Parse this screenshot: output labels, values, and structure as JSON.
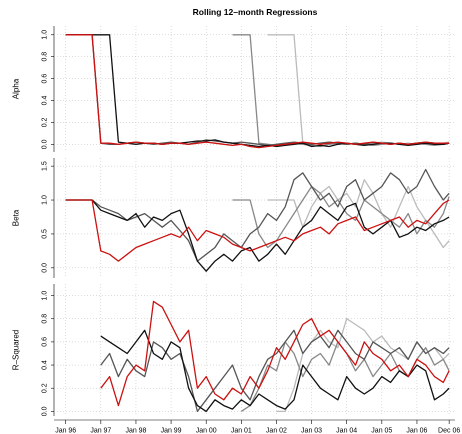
{
  "chart_data": [
    {
      "type": "line",
      "title": "Rolling 12–month Regressions",
      "ylabel": "Alpha",
      "xlim": [
        "1995-09",
        "2007-02"
      ],
      "ylim": [
        -0.07,
        1.08
      ],
      "yticks": [
        {
          "value": 0,
          "label": "0.0"
        },
        {
          "value": 0.2,
          "label": "0.2"
        },
        {
          "value": 0.4,
          "label": "0.4"
        },
        {
          "value": 0.6,
          "label": "0.6"
        },
        {
          "value": 0.8,
          "label": "0.8"
        },
        {
          "value": 1,
          "label": "1.0"
        }
      ],
      "xticks": [
        "1996-01",
        "1997-01",
        "1998-01",
        "1999-01",
        "2000-01",
        "2001-01",
        "2002-01",
        "2003-01",
        "2004-01",
        "2005-01",
        "2006-01",
        "2006-12"
      ],
      "grid": true,
      "x": [
        "1996-01",
        "1996-04",
        "1996-07",
        "1996-10",
        "1997-01",
        "1997-04",
        "1997-07",
        "1997-10",
        "1998-01",
        "1998-04",
        "1998-07",
        "1998-10",
        "1999-01",
        "1999-04",
        "1999-07",
        "1999-10",
        "2000-01",
        "2000-04",
        "2000-07",
        "2000-10",
        "2001-01",
        "2001-04",
        "2001-07",
        "2001-10",
        "2002-01",
        "2002-04",
        "2002-07",
        "2002-10",
        "2003-01",
        "2003-04",
        "2003-07",
        "2003-10",
        "2004-01",
        "2004-04",
        "2004-07",
        "2004-10",
        "2005-01",
        "2005-04",
        "2005-07",
        "2005-10",
        "2006-01",
        "2006-04",
        "2006-07",
        "2006-10",
        "2006-12"
      ],
      "series": [
        {
          "color": "#bbbbbb",
          "values": [
            null,
            null,
            null,
            null,
            null,
            null,
            null,
            null,
            null,
            null,
            null,
            null,
            null,
            null,
            null,
            null,
            null,
            null,
            null,
            null,
            null,
            null,
            null,
            1,
            1,
            1,
            1,
            0.01,
            0,
            0.01,
            0.02,
            0.01,
            0,
            0.01,
            0,
            0.01,
            0.02,
            0.01,
            0,
            0.01,
            0,
            0.01,
            0,
            0.01,
            0.02
          ]
        },
        {
          "color": "#888888",
          "values": [
            null,
            null,
            null,
            null,
            null,
            null,
            null,
            null,
            null,
            null,
            null,
            null,
            null,
            null,
            null,
            null,
            null,
            null,
            null,
            1,
            1,
            1,
            0.01,
            0,
            -0.01,
            0,
            0.01,
            0,
            -0.01,
            -0.02,
            0,
            0.01,
            0,
            0.01,
            0,
            -0.01,
            0,
            0.01,
            0,
            0,
            0.01,
            0,
            -0.01,
            0,
            0.01
          ]
        },
        {
          "color": "#555555",
          "values": [
            1,
            1,
            1,
            1,
            0.01,
            0,
            0,
            0.01,
            0.02,
            0.01,
            0,
            0.01,
            0.02,
            0.01,
            0,
            0.02,
            0.04,
            0.03,
            0.02,
            0.01,
            0.02,
            0.01,
            0,
            -0.01,
            0,
            0.01,
            0.02,
            0.01,
            0,
            0.01,
            0.02,
            0.01,
            0,
            0.01,
            0,
            0.02,
            0.01,
            0,
            0.01,
            0,
            0.01,
            0.02,
            0.01,
            0,
            0.01
          ]
        },
        {
          "color": "#111111",
          "values": [
            1,
            1,
            1,
            1,
            1,
            1,
            0.02,
            0.01,
            0,
            0.01,
            0.01,
            0,
            0.01,
            0.01,
            0.02,
            0.03,
            0.03,
            0.04,
            0.02,
            0.01,
            0,
            -0.01,
            -0.02,
            -0.01,
            -0.02,
            -0.01,
            0,
            0.01,
            -0.02,
            -0.01,
            -0.02,
            0,
            0.01,
            0,
            -0.01,
            0,
            0.01,
            0.01,
            0,
            -0.01,
            0,
            0.01,
            0,
            0,
            0.01
          ]
        },
        {
          "color": "#cc1111",
          "values": [
            1,
            1,
            1,
            1,
            0.01,
            0.01,
            0,
            0.01,
            0.02,
            0.01,
            0.01,
            0,
            0.01,
            0.01,
            0,
            0.01,
            0.02,
            0.01,
            0,
            -0.01,
            0,
            -0.02,
            -0.03,
            -0.02,
            -0.01,
            0,
            0.01,
            0.02,
            0.01,
            0,
            0.01,
            0.02,
            0.01,
            0,
            0.01,
            0.02,
            0.01,
            0,
            0.01,
            0,
            0.01,
            0.02,
            0.01,
            0.01,
            0.01
          ]
        }
      ]
    },
    {
      "type": "line",
      "ylabel": "Beta",
      "xlim": [
        "1995-09",
        "2007-02"
      ],
      "ylim": [
        -0.15,
        1.62
      ],
      "yticks": [
        {
          "value": 0,
          "label": "0.0"
        },
        {
          "value": 0.5,
          "label": "0.5"
        },
        {
          "value": 1,
          "label": "1.0"
        },
        {
          "value": 1.5,
          "label": "1.5"
        }
      ],
      "xticks": [
        "1996-01",
        "1997-01",
        "1998-01",
        "1999-01",
        "2000-01",
        "2001-01",
        "2002-01",
        "2003-01",
        "2004-01",
        "2005-01",
        "2006-01",
        "2006-12"
      ],
      "grid": true,
      "x": [
        "1996-01",
        "1996-04",
        "1996-07",
        "1996-10",
        "1997-01",
        "1997-04",
        "1997-07",
        "1997-10",
        "1998-01",
        "1998-04",
        "1998-07",
        "1998-10",
        "1999-01",
        "1999-04",
        "1999-07",
        "1999-10",
        "2000-01",
        "2000-04",
        "2000-07",
        "2000-10",
        "2001-01",
        "2001-04",
        "2001-07",
        "2001-10",
        "2002-01",
        "2002-04",
        "2002-07",
        "2002-10",
        "2003-01",
        "2003-04",
        "2003-07",
        "2003-10",
        "2004-01",
        "2004-04",
        "2004-07",
        "2004-10",
        "2005-01",
        "2005-04",
        "2005-07",
        "2005-10",
        "2006-01",
        "2006-04",
        "2006-07",
        "2006-10",
        "2006-12"
      ],
      "series": [
        {
          "color": "#bbbbbb",
          "values": [
            null,
            null,
            null,
            null,
            null,
            null,
            null,
            null,
            null,
            null,
            null,
            null,
            null,
            null,
            null,
            null,
            null,
            null,
            null,
            null,
            null,
            null,
            null,
            1,
            1,
            1,
            1,
            0.6,
            0.9,
            1.1,
            1.2,
            1.0,
            1.1,
            0.9,
            1.3,
            1.1,
            0.8,
            0.6,
            0.9,
            1.2,
            0.9,
            0.7,
            0.5,
            0.3,
            0.4
          ]
        },
        {
          "color": "#888888",
          "values": [
            null,
            null,
            null,
            null,
            null,
            null,
            null,
            null,
            null,
            null,
            null,
            null,
            null,
            null,
            null,
            null,
            null,
            null,
            null,
            1,
            1,
            1,
            0.5,
            0.3,
            0.4,
            0.6,
            0.8,
            1.0,
            1.2,
            1.1,
            0.9,
            1.0,
            0.8,
            0.7,
            1.0,
            0.9,
            0.8,
            0.7,
            0.6,
            0.8,
            0.5,
            0.7,
            0.6,
            0.8,
            1.05
          ]
        },
        {
          "color": "#555555",
          "values": [
            1,
            1,
            1,
            1,
            0.9,
            0.85,
            0.8,
            0.7,
            0.75,
            0.8,
            0.7,
            0.6,
            0.7,
            0.55,
            0.4,
            0.1,
            0.2,
            0.3,
            0.5,
            0.4,
            0.3,
            0.5,
            0.6,
            0.8,
            0.7,
            0.9,
            1.3,
            1.4,
            1.2,
            1.0,
            1.1,
            0.9,
            1.2,
            1.3,
            1.0,
            1.1,
            1.2,
            1.4,
            1.3,
            1.1,
            1.2,
            1.45,
            1.2,
            1.0,
            1.1
          ]
        },
        {
          "color": "#111111",
          "values": [
            1,
            1,
            1,
            1,
            0.85,
            0.8,
            0.75,
            0.7,
            0.8,
            0.6,
            0.75,
            0.7,
            0.8,
            0.85,
            0.5,
            0.1,
            -0.05,
            0.1,
            0.2,
            0.1,
            0.25,
            0.3,
            0.1,
            0.2,
            0.35,
            0.2,
            0.4,
            0.6,
            0.7,
            0.9,
            0.8,
            0.7,
            0.9,
            0.95,
            0.6,
            0.5,
            0.6,
            0.7,
            0.45,
            0.5,
            0.6,
            0.55,
            0.65,
            0.7,
            0.75
          ]
        },
        {
          "color": "#cc1111",
          "values": [
            1,
            1,
            1,
            1,
            0.25,
            0.2,
            0.1,
            0.2,
            0.3,
            0.35,
            0.4,
            0.45,
            0.5,
            0.45,
            0.6,
            0.4,
            0.55,
            0.5,
            0.45,
            0.35,
            0.3,
            0.25,
            0.3,
            0.35,
            0.4,
            0.45,
            0.4,
            0.5,
            0.55,
            0.6,
            0.5,
            0.65,
            0.7,
            0.75,
            0.55,
            0.6,
            0.65,
            0.7,
            0.75,
            0.6,
            0.7,
            0.65,
            0.8,
            0.95,
            1.0
          ]
        }
      ]
    },
    {
      "type": "line",
      "ylabel": "R–Squared",
      "xlim": [
        "1995-09",
        "2007-02"
      ],
      "ylim": [
        -0.04,
        1.1
      ],
      "yticks": [
        {
          "value": 0,
          "label": "0.0"
        },
        {
          "value": 0.2,
          "label": "0.2"
        },
        {
          "value": 0.4,
          "label": "0.4"
        },
        {
          "value": 0.6,
          "label": "0.6"
        },
        {
          "value": 0.8,
          "label": "0.8"
        },
        {
          "value": 1,
          "label": "1.0"
        }
      ],
      "xticks": [
        {
          "value": "1996-01",
          "label": "Jan 96"
        },
        {
          "value": "1997-01",
          "label": "Jan 97"
        },
        {
          "value": "1998-01",
          "label": "Jan 98"
        },
        {
          "value": "1999-01",
          "label": "Jan 99"
        },
        {
          "value": "2000-01",
          "label": "Jan 00"
        },
        {
          "value": "2001-01",
          "label": "Jan 01"
        },
        {
          "value": "2002-01",
          "label": "Jan 02"
        },
        {
          "value": "2003-01",
          "label": "Jan 03"
        },
        {
          "value": "2004-01",
          "label": "Jan 04"
        },
        {
          "value": "2005-01",
          "label": "Jan 05"
        },
        {
          "value": "2006-01",
          "label": "Jan 06"
        },
        {
          "value": "2006-12",
          "label": "Dec 06"
        }
      ],
      "grid": true,
      "x": [
        "1996-01",
        "1996-04",
        "1996-07",
        "1996-10",
        "1997-01",
        "1997-04",
        "1997-07",
        "1997-10",
        "1998-01",
        "1998-04",
        "1998-07",
        "1998-10",
        "1999-01",
        "1999-04",
        "1999-07",
        "1999-10",
        "2000-01",
        "2000-04",
        "2000-07",
        "2000-10",
        "2001-01",
        "2001-04",
        "2001-07",
        "2001-10",
        "2002-01",
        "2002-04",
        "2002-07",
        "2002-10",
        "2003-01",
        "2003-04",
        "2003-07",
        "2003-10",
        "2004-01",
        "2004-04",
        "2004-07",
        "2004-10",
        "2005-01",
        "2005-04",
        "2005-07",
        "2005-10",
        "2006-01",
        "2006-04",
        "2006-07",
        "2006-10",
        "2006-12"
      ],
      "series": [
        {
          "color": "#bbbbbb",
          "values": [
            null,
            null,
            null,
            null,
            null,
            null,
            null,
            null,
            null,
            null,
            null,
            null,
            null,
            null,
            null,
            null,
            null,
            null,
            null,
            null,
            null,
            null,
            null,
            null,
            0.0,
            0.0,
            0.2,
            0.5,
            0.6,
            0.7,
            0.6,
            0.55,
            0.8,
            0.75,
            0.7,
            0.6,
            0.65,
            0.55,
            0.5,
            0.45,
            0.6,
            0.5,
            0.55,
            0.45,
            0.5
          ]
        },
        {
          "color": "#888888",
          "values": [
            null,
            null,
            null,
            null,
            null,
            null,
            null,
            null,
            null,
            null,
            null,
            null,
            null,
            null,
            null,
            null,
            null,
            null,
            null,
            null,
            0.0,
            0.05,
            0.2,
            0.4,
            0.35,
            0.6,
            0.5,
            0.3,
            0.45,
            0.5,
            0.4,
            0.6,
            0.5,
            0.35,
            0.45,
            0.3,
            0.4,
            0.5,
            0.35,
            0.3,
            0.45,
            0.55,
            0.4,
            0.45,
            0.35
          ]
        },
        {
          "color": "#555555",
          "values": [
            null,
            null,
            null,
            null,
            0.4,
            0.5,
            0.3,
            0.45,
            0.35,
            0.3,
            0.6,
            0.55,
            0.45,
            0.5,
            0.3,
            0.0,
            0.1,
            0.2,
            0.3,
            0.4,
            0.2,
            0.1,
            0.3,
            0.45,
            0.5,
            0.6,
            0.7,
            0.5,
            0.6,
            0.65,
            0.55,
            0.7,
            0.6,
            0.5,
            0.45,
            0.6,
            0.55,
            0.5,
            0.55,
            0.45,
            0.6,
            0.5,
            0.55,
            0.5,
            0.55
          ]
        },
        {
          "color": "#111111",
          "values": [
            null,
            null,
            null,
            null,
            0.65,
            0.6,
            0.55,
            0.5,
            0.6,
            0.7,
            0.5,
            0.45,
            0.6,
            0.55,
            0.2,
            0.05,
            0.0,
            0.1,
            0.05,
            0.02,
            0.1,
            0.05,
            0.15,
            0.1,
            0.05,
            0.02,
            0.1,
            0.4,
            0.3,
            0.2,
            0.15,
            0.1,
            0.3,
            0.2,
            0.15,
            0.2,
            0.3,
            0.25,
            0.35,
            0.3,
            0.4,
            0.35,
            0.1,
            0.15,
            0.2
          ]
        },
        {
          "color": "#cc1111",
          "values": [
            null,
            null,
            null,
            null,
            0.2,
            0.3,
            0.05,
            0.3,
            0.4,
            0.35,
            0.95,
            0.9,
            0.75,
            0.6,
            0.7,
            0.2,
            0.3,
            0.15,
            0.1,
            0.2,
            0.15,
            0.3,
            0.2,
            0.35,
            0.55,
            0.45,
            0.6,
            0.75,
            0.8,
            0.65,
            0.7,
            0.6,
            0.5,
            0.4,
            0.6,
            0.5,
            0.45,
            0.35,
            0.4,
            0.3,
            0.45,
            0.4,
            0.3,
            0.25,
            0.35
          ]
        }
      ]
    }
  ]
}
